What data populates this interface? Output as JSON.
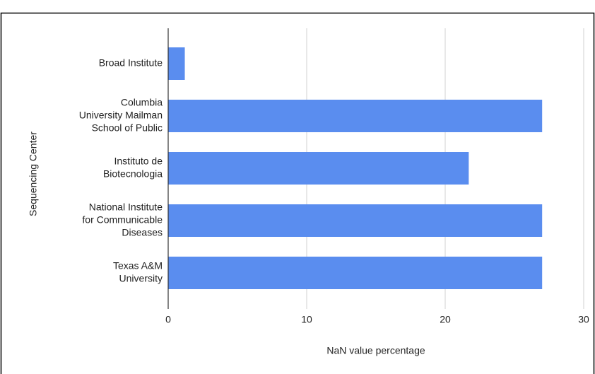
{
  "chart_data": {
    "type": "barh",
    "categories": [
      [
        "Broad Institute"
      ],
      [
        "Columbia",
        "University Mailman",
        "School of Public"
      ],
      [
        "Instituto de",
        "Biotecnologia"
      ],
      [
        "National Institute",
        "for Communicable",
        "Diseases"
      ],
      [
        "Texas A&M",
        "University"
      ]
    ],
    "values": [
      1.2,
      27.0,
      21.7,
      27.0,
      27.0
    ],
    "color": "#5a8def",
    "xlim": [
      0,
      30
    ],
    "xticks": [
      0,
      10,
      20,
      30
    ],
    "grid": true,
    "xlabel": "NaN value percentage",
    "ylabel": "Sequencing Center"
  }
}
